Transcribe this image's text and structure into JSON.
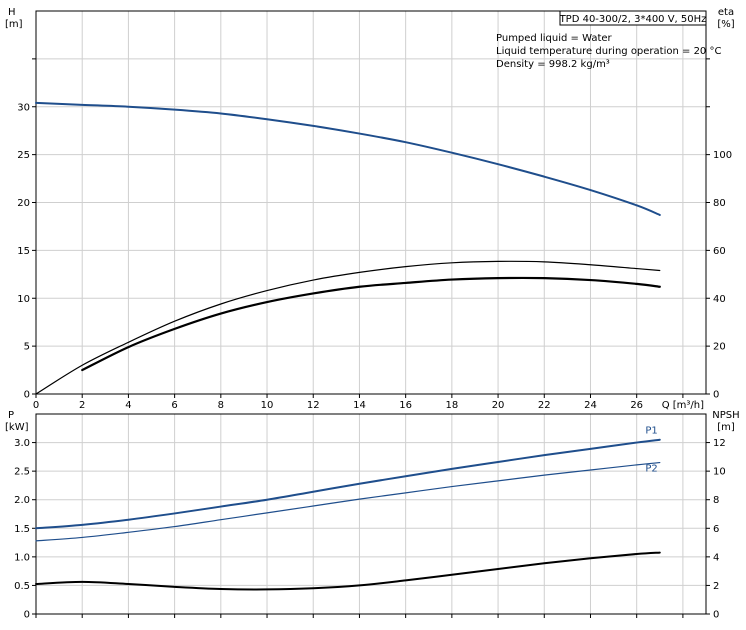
{
  "chart_data": [
    {
      "type": "line",
      "panel": "upper",
      "title_box": "TPD 40-300/2, 3*400 V, 50Hz",
      "info_lines": [
        "Pumped liquid = Water",
        "Liquid temperature during operation = 20 °C",
        "Density = 998.2 kg/m³"
      ],
      "y_left_label": [
        "H",
        "[m]"
      ],
      "y_right_label": [
        "eta",
        "[%]"
      ],
      "x_label": "Q [m³/h]",
      "xlim": [
        0,
        29
      ],
      "ylim_left": [
        0,
        40
      ],
      "ylim_right": [
        0,
        160
      ],
      "x_ticks": [
        0,
        2,
        4,
        6,
        8,
        10,
        12,
        14,
        16,
        18,
        20,
        22,
        24,
        26
      ],
      "y_left_ticks": [
        0,
        5,
        10,
        15,
        20,
        25,
        30
      ],
      "y_right_ticks": [
        0,
        20,
        40,
        60,
        80,
        100
      ],
      "grid": true,
      "series": [
        {
          "axis": "left",
          "color": "#1f4e8c",
          "width": 2,
          "x": [
            0,
            2,
            4,
            6,
            8,
            10,
            12,
            14,
            16,
            18,
            20,
            22,
            24,
            26,
            27
          ],
          "y": [
            30.4,
            30.2,
            30.0,
            29.7,
            29.3,
            28.7,
            28.0,
            27.2,
            26.3,
            25.2,
            24.0,
            22.7,
            21.3,
            19.7,
            18.7
          ]
        },
        {
          "axis": "left",
          "color": "#000000",
          "width": 1.2,
          "x": [
            0,
            2,
            4,
            6,
            8,
            10,
            12,
            14,
            16,
            18,
            20,
            22,
            24,
            26,
            27
          ],
          "y": [
            0,
            3.0,
            5.4,
            7.6,
            9.4,
            10.8,
            11.9,
            12.7,
            13.3,
            13.7,
            13.85,
            13.8,
            13.5,
            13.1,
            12.9
          ]
        },
        {
          "axis": "left",
          "color": "#000000",
          "width": 2.2,
          "x": [
            2,
            4,
            6,
            8,
            10,
            12,
            14,
            16,
            18,
            20,
            22,
            24,
            26,
            27
          ],
          "y": [
            2.5,
            4.9,
            6.8,
            8.4,
            9.6,
            10.5,
            11.2,
            11.6,
            11.95,
            12.1,
            12.1,
            11.9,
            11.5,
            11.2
          ]
        }
      ]
    },
    {
      "type": "line",
      "panel": "lower",
      "y_left_label": [
        "P",
        "[kW]"
      ],
      "y_right_label": [
        "NPSH",
        "[m]"
      ],
      "xlim": [
        0,
        29
      ],
      "ylim_left": [
        0,
        3.5
      ],
      "ylim_right": [
        0,
        14
      ],
      "y_left_ticks": [
        0,
        0.5,
        1.0,
        1.5,
        2.0,
        2.5,
        3.0
      ],
      "y_left_tick_labels": [
        "0",
        "0.5",
        "1.0",
        "1.5",
        "2.0",
        "2.5",
        "3.0"
      ],
      "y_right_ticks": [
        0,
        2,
        4,
        6,
        8,
        10,
        12
      ],
      "grid": true,
      "series": [
        {
          "name": "P1",
          "axis": "left",
          "color": "#1f4e8c",
          "width": 2,
          "x": [
            0,
            2,
            4,
            6,
            8,
            10,
            12,
            14,
            16,
            18,
            20,
            22,
            24,
            26,
            27
          ],
          "y": [
            1.5,
            1.56,
            1.65,
            1.76,
            1.88,
            2.0,
            2.14,
            2.28,
            2.41,
            2.54,
            2.66,
            2.78,
            2.89,
            3.0,
            3.05
          ]
        },
        {
          "name": "P2",
          "axis": "left",
          "color": "#1f4e8c",
          "width": 1.2,
          "x": [
            0,
            2,
            4,
            6,
            8,
            10,
            12,
            14,
            16,
            18,
            20,
            22,
            24,
            26,
            27
          ],
          "y": [
            1.28,
            1.34,
            1.43,
            1.53,
            1.65,
            1.77,
            1.89,
            2.01,
            2.12,
            2.23,
            2.33,
            2.43,
            2.52,
            2.61,
            2.65
          ]
        },
        {
          "axis": "right",
          "color": "#000000",
          "width": 2,
          "x": [
            0,
            2,
            4,
            6,
            8,
            10,
            12,
            14,
            16,
            18,
            20,
            22,
            24,
            26,
            27
          ],
          "y": [
            2.1,
            2.25,
            2.1,
            1.9,
            1.75,
            1.72,
            1.8,
            2.0,
            2.35,
            2.75,
            3.15,
            3.55,
            3.9,
            4.2,
            4.3
          ]
        }
      ]
    }
  ]
}
